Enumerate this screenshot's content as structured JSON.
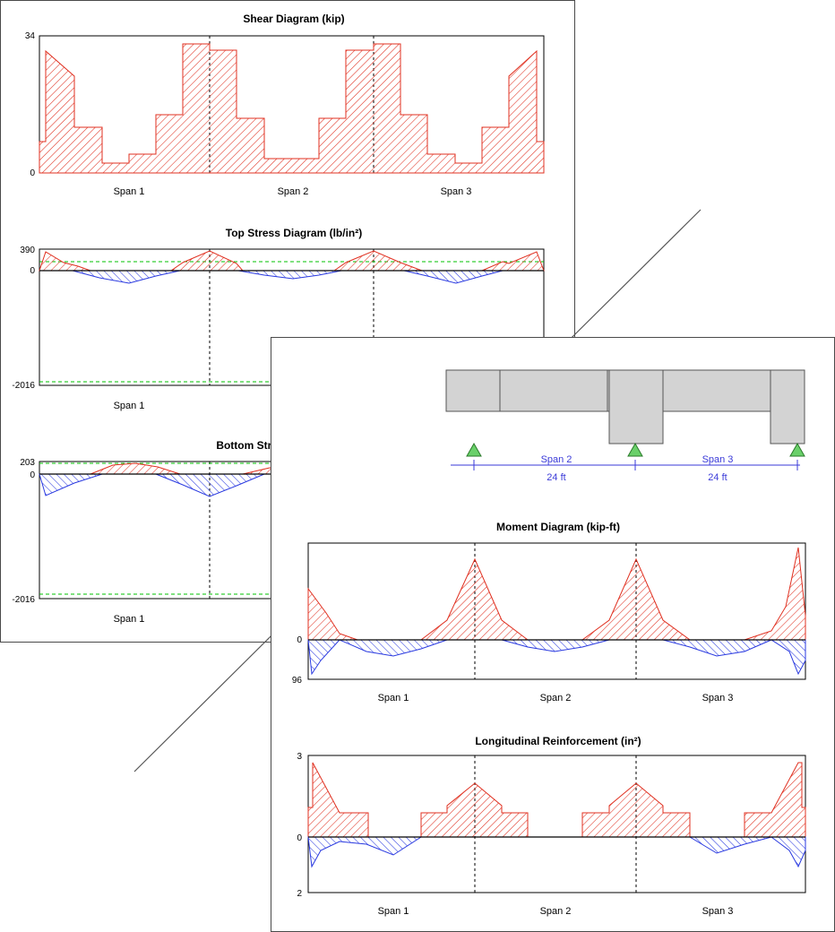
{
  "colors": {
    "positive": "#e03020",
    "negative": "#2a3ae0",
    "limit": "#00c000",
    "support": "#6ad06a",
    "beam": "#d3d3d3",
    "dim": "#3a3ad8"
  },
  "spans": [
    "Span 1",
    "Span 2",
    "Span 3"
  ],
  "beam": {
    "span_labels": [
      "Span 2",
      "Span 3"
    ],
    "length_labels": [
      "24 ft",
      "24 ft"
    ]
  },
  "chart_data": [
    {
      "type": "area",
      "title": "Shear Diagram (kip)",
      "ylim": [
        0,
        34
      ],
      "tick_labels": [
        "34",
        "0"
      ],
      "x": [
        0,
        0.2,
        0.2,
        1.2,
        1.2,
        2.2,
        2.2,
        3.2,
        3.2,
        4.2,
        4.2,
        5.2,
        5.2,
        6,
        6,
        6.8,
        6.8,
        7.8,
        7.8,
        8.8,
        8.8,
        9.8,
        9.8,
        10.8,
        10.8,
        11.8,
        11.8,
        12,
        12,
        12.2,
        12.2,
        13.2,
        13.2,
        14.2,
        14.2,
        15.2,
        15.2,
        16.2,
        16.2,
        17.2,
        17.2,
        18,
        18,
        18.8,
        18.8,
        19.8,
        19.8,
        20.8,
        20.8,
        21.8,
        21.8,
        22.8,
        22.8,
        23.8,
        23.8,
        24,
        24,
        24.2,
        24.2,
        25.2,
        25.2,
        26.2,
        26.2,
        27.2,
        27.2,
        28.2,
        28.2,
        29.2,
        29.2,
        30.2,
        30.2,
        31,
        31,
        31.2,
        31.2,
        32.2,
        32.2,
        32.2,
        33.2,
        33.2,
        33.8,
        33.8,
        34,
        34,
        35
      ],
      "values": [
        0,
        7.5,
        31.5,
        25,
        11.5,
        11.5,
        2.5,
        2.5,
        4.5,
        4.5,
        14,
        14,
        32.5,
        32.5,
        32.5,
        31.5,
        31.5,
        11.5,
        11.5,
        3.5,
        3.5,
        3.5,
        3.5,
        11.5,
        11.5,
        31.5,
        31.5,
        33,
        33,
        32.5,
        32.5,
        14,
        14,
        4.5,
        4.5,
        2.5,
        2.5,
        11.5,
        11.5,
        25,
        25,
        31.5,
        31.5,
        7.5,
        7.5,
        0,
        0,
        0,
        0,
        0,
        0,
        0,
        0,
        0,
        0,
        0,
        0,
        0,
        0,
        0,
        0,
        0,
        0,
        0,
        0,
        0,
        0,
        0,
        0,
        0,
        0,
        0,
        0,
        0,
        0,
        0,
        0,
        0,
        0,
        0,
        0,
        0,
        0,
        0,
        0
      ]
    },
    {
      "type": "area",
      "title": "Top  Stress Diagram (lb/in²)",
      "ylim": [
        -2016,
        390
      ],
      "limits": [
        200,
        -1900
      ],
      "tick_labels": [
        "390",
        "0",
        "-2016"
      ],
      "x": [
        0,
        0.5,
        2,
        3.8,
        5.6,
        7.2,
        9,
        10.5,
        12,
        13.5,
        15,
        17,
        19.2,
        21,
        22.5,
        24,
        25.5,
        27,
        28.8,
        30.6,
        32,
        33,
        33.5,
        34,
        36
      ],
      "values": [
        0,
        390,
        160,
        90,
        0,
        -220,
        0,
        120,
        390,
        150,
        0,
        -120,
        0,
        140,
        390,
        140,
        0,
        -230,
        0,
        0,
        120,
        160,
        390,
        0,
        0
      ]
    },
    {
      "type": "area",
      "title": "Bottom  Stress Diagram (lb/in²)",
      "ylim": [
        -2016,
        203
      ],
      "limits": [
        180,
        -1900
      ],
      "tick_labels": [
        "203",
        "0",
        "-2016"
      ],
      "x": [
        0,
        0.2,
        0.5,
        2,
        3,
        4,
        6,
        8,
        10.3,
        12,
        13,
        14,
        16,
        18,
        20,
        21.6,
        24,
        25,
        27
      ],
      "values": [
        0,
        -380,
        -210,
        -60,
        0,
        140,
        100,
        0,
        -260,
        -420,
        -180,
        0,
        120,
        0,
        -170,
        -390,
        -240,
        0,
        0
      ]
    },
    {
      "type": "area",
      "title": "Moment Diagram (kip-ft)",
      "ylim": [
        -96,
        96
      ],
      "tick_labels": [
        "0",
        "96"
      ],
      "x": [
        0,
        0.8,
        2,
        3.2,
        5.6,
        7.2,
        9,
        10.5,
        12,
        13.5,
        15,
        16.5,
        18,
        20,
        22,
        24,
        25,
        27,
        29.2,
        31,
        32.2,
        33.5,
        35,
        36
      ],
      "values": [
        0,
        50,
        10,
        0,
        -20,
        0,
        25,
        95,
        25,
        0,
        -15,
        0,
        25,
        95,
        25,
        0,
        -20,
        0,
        10,
        95,
        30,
        -40,
        -70,
        0
      ]
    },
    {
      "type": "area",
      "title": "Longitudinal Reinforcement (in²)",
      "ylim": [
        -2,
        3
      ],
      "tick_labels": [
        "3",
        "0",
        "2"
      ],
      "x": [
        0,
        0.2,
        1.2,
        3,
        5.1,
        6.6,
        7.2,
        12,
        15.3,
        16.5,
        18.3,
        21.6,
        24,
        27,
        28,
        30,
        32.2,
        33.6,
        34.6,
        35
      ],
      "values": [
        0,
        2.8,
        0.9,
        -0.1,
        -0.3,
        0,
        0.9,
        2,
        0.9,
        0,
        0.9,
        2,
        0.9,
        0,
        -0.6,
        -0.3,
        0,
        0.9,
        2.8,
        0
      ]
    }
  ]
}
